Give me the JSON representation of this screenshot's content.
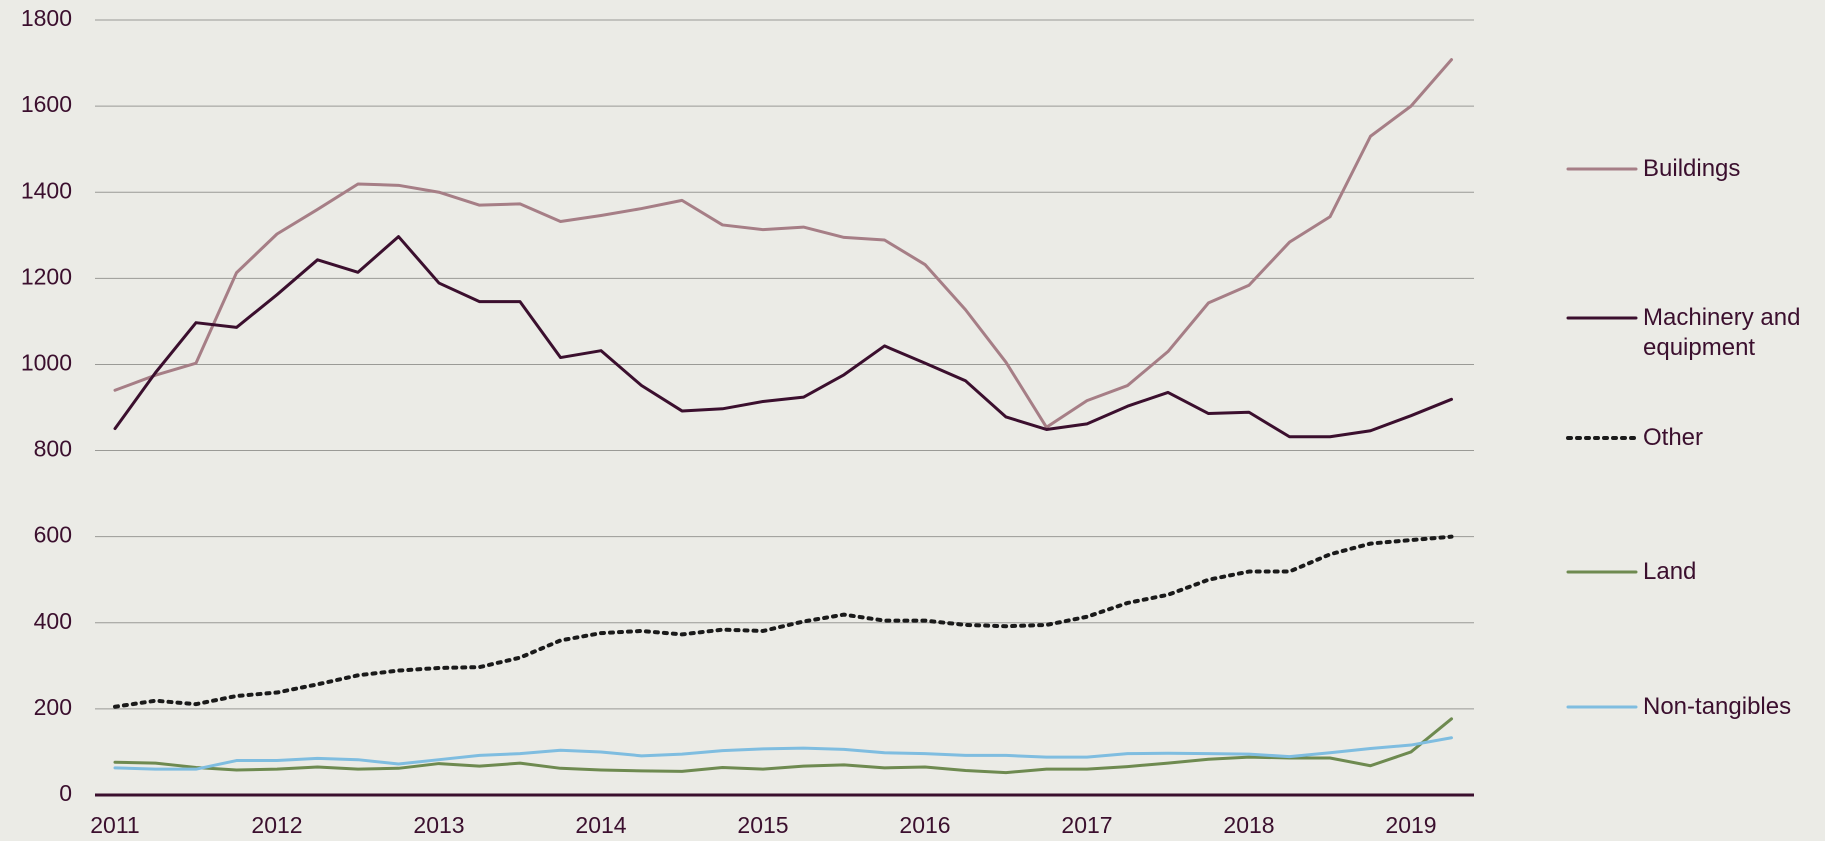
{
  "chart_data": {
    "type": "line",
    "categories": [
      "2011",
      null,
      null,
      null,
      "2012",
      null,
      null,
      null,
      "2013",
      null,
      null,
      null,
      "2014",
      null,
      null,
      null,
      "2015",
      null,
      null,
      null,
      "2016",
      null,
      null,
      null,
      "2017",
      null,
      null,
      null,
      "2018",
      null,
      null,
      null,
      "2019",
      null
    ],
    "ylim": [
      0,
      1800
    ],
    "yticks": [
      0,
      200,
      400,
      600,
      800,
      1000,
      1200,
      1400,
      1600,
      1800
    ],
    "grid": true,
    "legend": "right",
    "series": [
      {
        "name": "Buildings",
        "color": "#a67e86",
        "dash": "solid",
        "values": [
          940,
          975,
          1003,
          1213,
          1303,
          1360,
          1419,
          1416,
          1400,
          1370,
          1373,
          1332,
          1346,
          1362,
          1381,
          1324,
          1313,
          1319,
          1295,
          1289,
          1232,
          1127,
          1005,
          854,
          916,
          951,
          1030,
          1143,
          1184,
          1284,
          1343,
          1530,
          1600,
          1708
        ]
      },
      {
        "name": "Machinery and equipment",
        "color": "#3b0f2e",
        "dash": "solid",
        "values": [
          851,
          981,
          1097,
          1086,
          1162,
          1243,
          1214,
          1297,
          1189,
          1146,
          1146,
          1016,
          1032,
          951,
          892,
          897,
          914,
          924,
          976,
          1043,
          1003,
          962,
          878,
          849,
          862,
          903,
          935,
          886,
          889,
          832,
          832,
          846,
          881,
          919
        ]
      },
      {
        "name": "Other",
        "color": "#1a1a1a",
        "dash": "dotted",
        "values": [
          205,
          219,
          211,
          230,
          238,
          257,
          278,
          289,
          295,
          297,
          319,
          359,
          376,
          381,
          373,
          384,
          381,
          403,
          419,
          405,
          405,
          395,
          392,
          395,
          414,
          446,
          465,
          500,
          519,
          519,
          559,
          584,
          592,
          600
        ]
      },
      {
        "name": "Land",
        "color": "#6e8a50",
        "dash": "solid",
        "values": [
          76,
          74,
          64,
          58,
          60,
          65,
          60,
          62,
          73,
          67,
          74,
          62,
          58,
          56,
          55,
          64,
          60,
          67,
          70,
          63,
          65,
          57,
          52,
          60,
          60,
          66,
          74,
          83,
          88,
          86,
          86,
          68,
          100,
          177
        ]
      },
      {
        "name": "Non-tangibles",
        "color": "#7fbde0",
        "dash": "solid",
        "values": [
          63,
          60,
          60,
          80,
          80,
          85,
          82,
          72,
          82,
          92,
          96,
          104,
          100,
          91,
          95,
          103,
          107,
          109,
          106,
          98,
          96,
          92,
          92,
          88,
          88,
          96,
          97,
          96,
          95,
          89,
          98,
          108,
          116,
          133
        ]
      }
    ]
  }
}
